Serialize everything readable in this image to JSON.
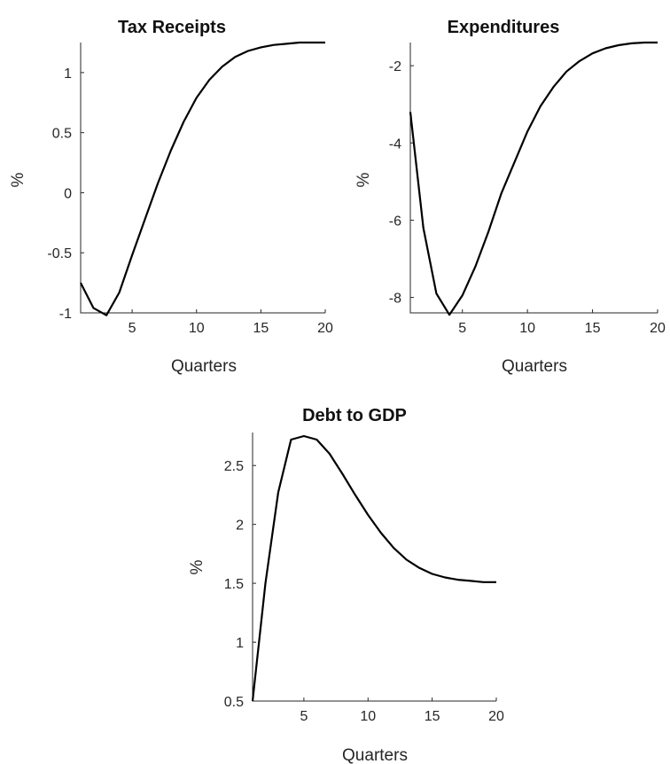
{
  "chart_data": [
    {
      "type": "line",
      "title": "Tax Receipts",
      "xlabel": "Quarters",
      "ylabel": "%",
      "xlim": [
        1,
        20
      ],
      "ylim": [
        -1,
        1.25
      ],
      "xticks": [
        5,
        10,
        15,
        20
      ],
      "yticks": [
        -1,
        -0.5,
        0,
        0.5,
        1
      ],
      "ytick_labels": [
        "-1",
        "-0.5",
        "0",
        "0.5",
        "1"
      ],
      "grid": false,
      "series": [
        {
          "x": [
            1,
            2,
            3,
            4,
            5,
            6,
            7,
            8,
            9,
            10,
            11,
            12,
            13,
            14,
            15,
            16,
            17,
            18,
            19,
            20
          ],
          "y": [
            -0.75,
            -0.96,
            -1.02,
            -0.83,
            -0.52,
            -0.22,
            0.08,
            0.35,
            0.59,
            0.79,
            0.94,
            1.05,
            1.13,
            1.18,
            1.21,
            1.23,
            1.24,
            1.25,
            1.25,
            1.25
          ],
          "color": "#000000"
        }
      ]
    },
    {
      "type": "line",
      "title": "Expenditures",
      "xlabel": "Quarters",
      "ylabel": "%",
      "xlim": [
        1,
        20
      ],
      "ylim": [
        -8.4,
        -1.4
      ],
      "xticks": [
        5,
        10,
        15,
        20
      ],
      "yticks": [
        -8,
        -6,
        -4,
        -2
      ],
      "ytick_labels": [
        "-8",
        "-6",
        "-4",
        "-2"
      ],
      "grid": false,
      "series": [
        {
          "x": [
            1,
            2,
            3,
            4,
            5,
            6,
            7,
            8,
            9,
            10,
            11,
            12,
            13,
            14,
            15,
            16,
            17,
            18,
            19,
            20
          ],
          "y": [
            -3.2,
            -6.2,
            -7.9,
            -8.45,
            -7.95,
            -7.2,
            -6.3,
            -5.3,
            -4.5,
            -3.7,
            -3.05,
            -2.55,
            -2.15,
            -1.88,
            -1.68,
            -1.55,
            -1.47,
            -1.42,
            -1.4,
            -1.4
          ],
          "color": "#000000"
        }
      ]
    },
    {
      "type": "line",
      "title": "Debt to GDP",
      "xlabel": "Quarters",
      "ylabel": "%",
      "xlim": [
        1,
        20
      ],
      "ylim": [
        0.5,
        2.78
      ],
      "xticks": [
        5,
        10,
        15,
        20
      ],
      "yticks": [
        0.5,
        1,
        1.5,
        2,
        2.5
      ],
      "ytick_labels": [
        "0.5",
        "1",
        "1.5",
        "2",
        "2.5"
      ],
      "grid": false,
      "series": [
        {
          "x": [
            1,
            2,
            3,
            4,
            5,
            6,
            7,
            8,
            9,
            10,
            11,
            12,
            13,
            14,
            15,
            16,
            17,
            18,
            19,
            20
          ],
          "y": [
            0.5,
            1.5,
            2.27,
            2.72,
            2.75,
            2.72,
            2.6,
            2.43,
            2.25,
            2.08,
            1.93,
            1.8,
            1.7,
            1.63,
            1.58,
            1.55,
            1.53,
            1.52,
            1.51,
            1.51
          ],
          "color": "#000000"
        }
      ]
    }
  ]
}
